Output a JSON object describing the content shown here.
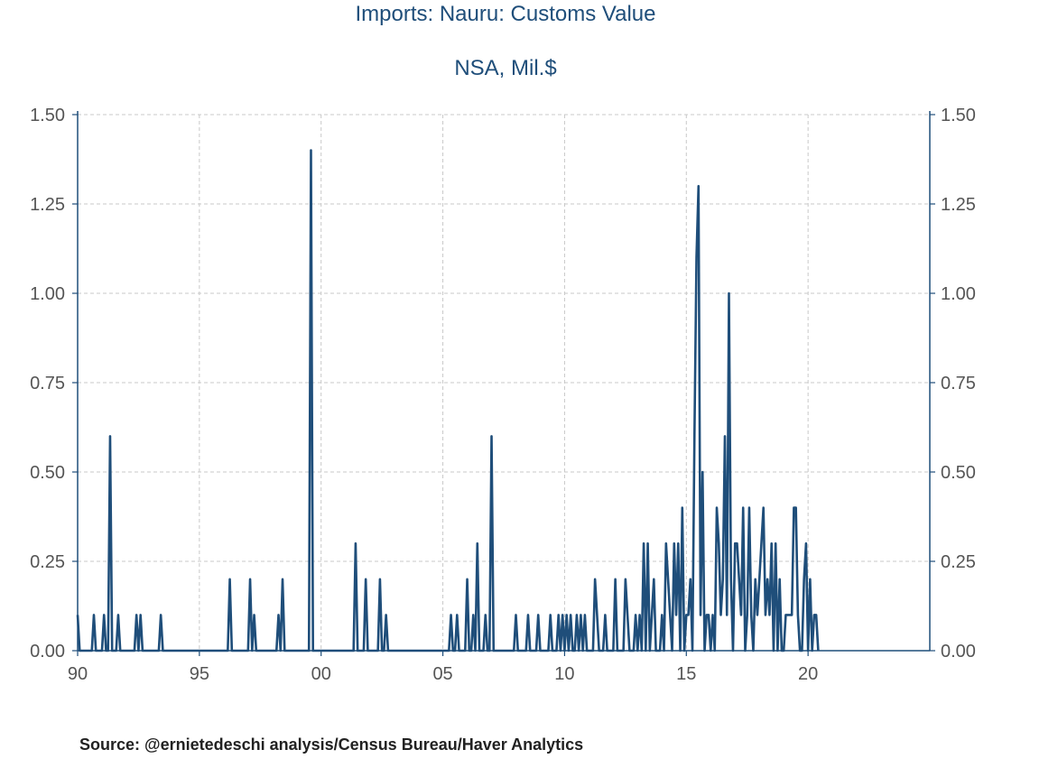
{
  "chart_data": {
    "type": "line",
    "title": "Imports: Nauru: Customs Value",
    "subtitle": "NSA, Mil.$",
    "source": "Source:  @ernietedeschi analysis/Census Bureau/Haver Analytics",
    "x_start": 1990.0,
    "x_step_months": 1,
    "xlim": [
      1990.0,
      2025.0
    ],
    "ylim": [
      0,
      1.5
    ],
    "grid": true,
    "x_ticks": [
      {
        "value": 1990,
        "label": "90"
      },
      {
        "value": 1995,
        "label": "95"
      },
      {
        "value": 2000,
        "label": "00"
      },
      {
        "value": 2005,
        "label": "05"
      },
      {
        "value": 2010,
        "label": "10"
      },
      {
        "value": 2015,
        "label": "15"
      },
      {
        "value": 2020,
        "label": "20"
      }
    ],
    "y_ticks": [
      {
        "value": 0,
        "label": "0.00"
      },
      {
        "value": 0.25,
        "label": "0.25"
      },
      {
        "value": 0.5,
        "label": "0.50"
      },
      {
        "value": 0.75,
        "label": "0.75"
      },
      {
        "value": 1.0,
        "label": "1.00"
      },
      {
        "value": 1.25,
        "label": "1.25"
      },
      {
        "value": 1.5,
        "label": "1.50"
      }
    ],
    "series": [
      {
        "name": "Imports: Nauru: Customs Value",
        "color": "#1f4e7a",
        "values": [
          0.1,
          0,
          0,
          0,
          0,
          0,
          0,
          0,
          0.1,
          0,
          0,
          0,
          0,
          0.1,
          0,
          0,
          0.6,
          0,
          0,
          0,
          0.1,
          0,
          0,
          0,
          0,
          0,
          0,
          0,
          0,
          0.1,
          0,
          0.1,
          0,
          0,
          0,
          0,
          0,
          0,
          0,
          0,
          0,
          0.1,
          0,
          0,
          0,
          0,
          0,
          0,
          0,
          0,
          0,
          0,
          0,
          0,
          0,
          0,
          0,
          0,
          0,
          0,
          0,
          0,
          0,
          0,
          0,
          0,
          0,
          0,
          0,
          0,
          0,
          0,
          0,
          0,
          0,
          0.2,
          0,
          0,
          0,
          0,
          0,
          0,
          0,
          0,
          0,
          0.2,
          0,
          0.1,
          0,
          0,
          0,
          0,
          0,
          0,
          0,
          0,
          0,
          0,
          0,
          0.1,
          0,
          0.2,
          0,
          0,
          0,
          0,
          0,
          0,
          0,
          0,
          0,
          0,
          0,
          0,
          0,
          1.4,
          0,
          0,
          0,
          0,
          0,
          0,
          0,
          0,
          0,
          0,
          0,
          0,
          0,
          0,
          0,
          0,
          0,
          0,
          0,
          0,
          0,
          0.3,
          0,
          0,
          0,
          0,
          0.2,
          0,
          0,
          0,
          0,
          0,
          0,
          0.2,
          0,
          0,
          0.1,
          0,
          0,
          0,
          0,
          0,
          0,
          0,
          0,
          0,
          0,
          0,
          0,
          0,
          0,
          0,
          0,
          0,
          0,
          0,
          0,
          0,
          0,
          0,
          0,
          0,
          0,
          0,
          0,
          0,
          0,
          0,
          0.1,
          0,
          0,
          0.1,
          0,
          0,
          0,
          0,
          0.2,
          0,
          0,
          0.1,
          0,
          0.3,
          0,
          0,
          0,
          0.1,
          0,
          0,
          0.6,
          0,
          0,
          0,
          0,
          0,
          0,
          0,
          0,
          0,
          0,
          0,
          0.1,
          0,
          0,
          0,
          0,
          0,
          0.1,
          0,
          0,
          0,
          0,
          0.1,
          0,
          0,
          0,
          0,
          0,
          0.1,
          0,
          0,
          0,
          0.1,
          0,
          0.1,
          0,
          0.1,
          0,
          0.1,
          0,
          0,
          0.1,
          0,
          0.1,
          0,
          0.1,
          0,
          0,
          0,
          0,
          0.2,
          0.1,
          0,
          0,
          0,
          0.1,
          0,
          0,
          0,
          0,
          0.2,
          0,
          0,
          0,
          0,
          0.2,
          0.1,
          0,
          0,
          0,
          0.1,
          0,
          0.1,
          0,
          0.3,
          0,
          0.3,
          0,
          0.1,
          0.2,
          0,
          0,
          0,
          0.1,
          0,
          0.3,
          0.2,
          0.1,
          0,
          0.3,
          0.1,
          0.3,
          0,
          0.4,
          0,
          0.1,
          0.1,
          0.2,
          0,
          0.6,
          1.1,
          1.3,
          0.1,
          0.5,
          0,
          0.1,
          0.1,
          0,
          0.1,
          0,
          0.4,
          0.3,
          0.1,
          0.2,
          0.6,
          0.1,
          1.0,
          0.2,
          0,
          0.3,
          0.3,
          0.2,
          0.1,
          0.4,
          0,
          0.1,
          0.4,
          0.1,
          0,
          0.2,
          0.1,
          0.2,
          0.3,
          0.4,
          0.1,
          0.2,
          0.1,
          0.3,
          0,
          0.3,
          0,
          0.2,
          0,
          0,
          0.1,
          0.1,
          0.1,
          0.1,
          0.4,
          0.4,
          0.1,
          0,
          0,
          0.2,
          0.3,
          0,
          0.2,
          0,
          0.1,
          0.1,
          0
        ]
      }
    ]
  }
}
